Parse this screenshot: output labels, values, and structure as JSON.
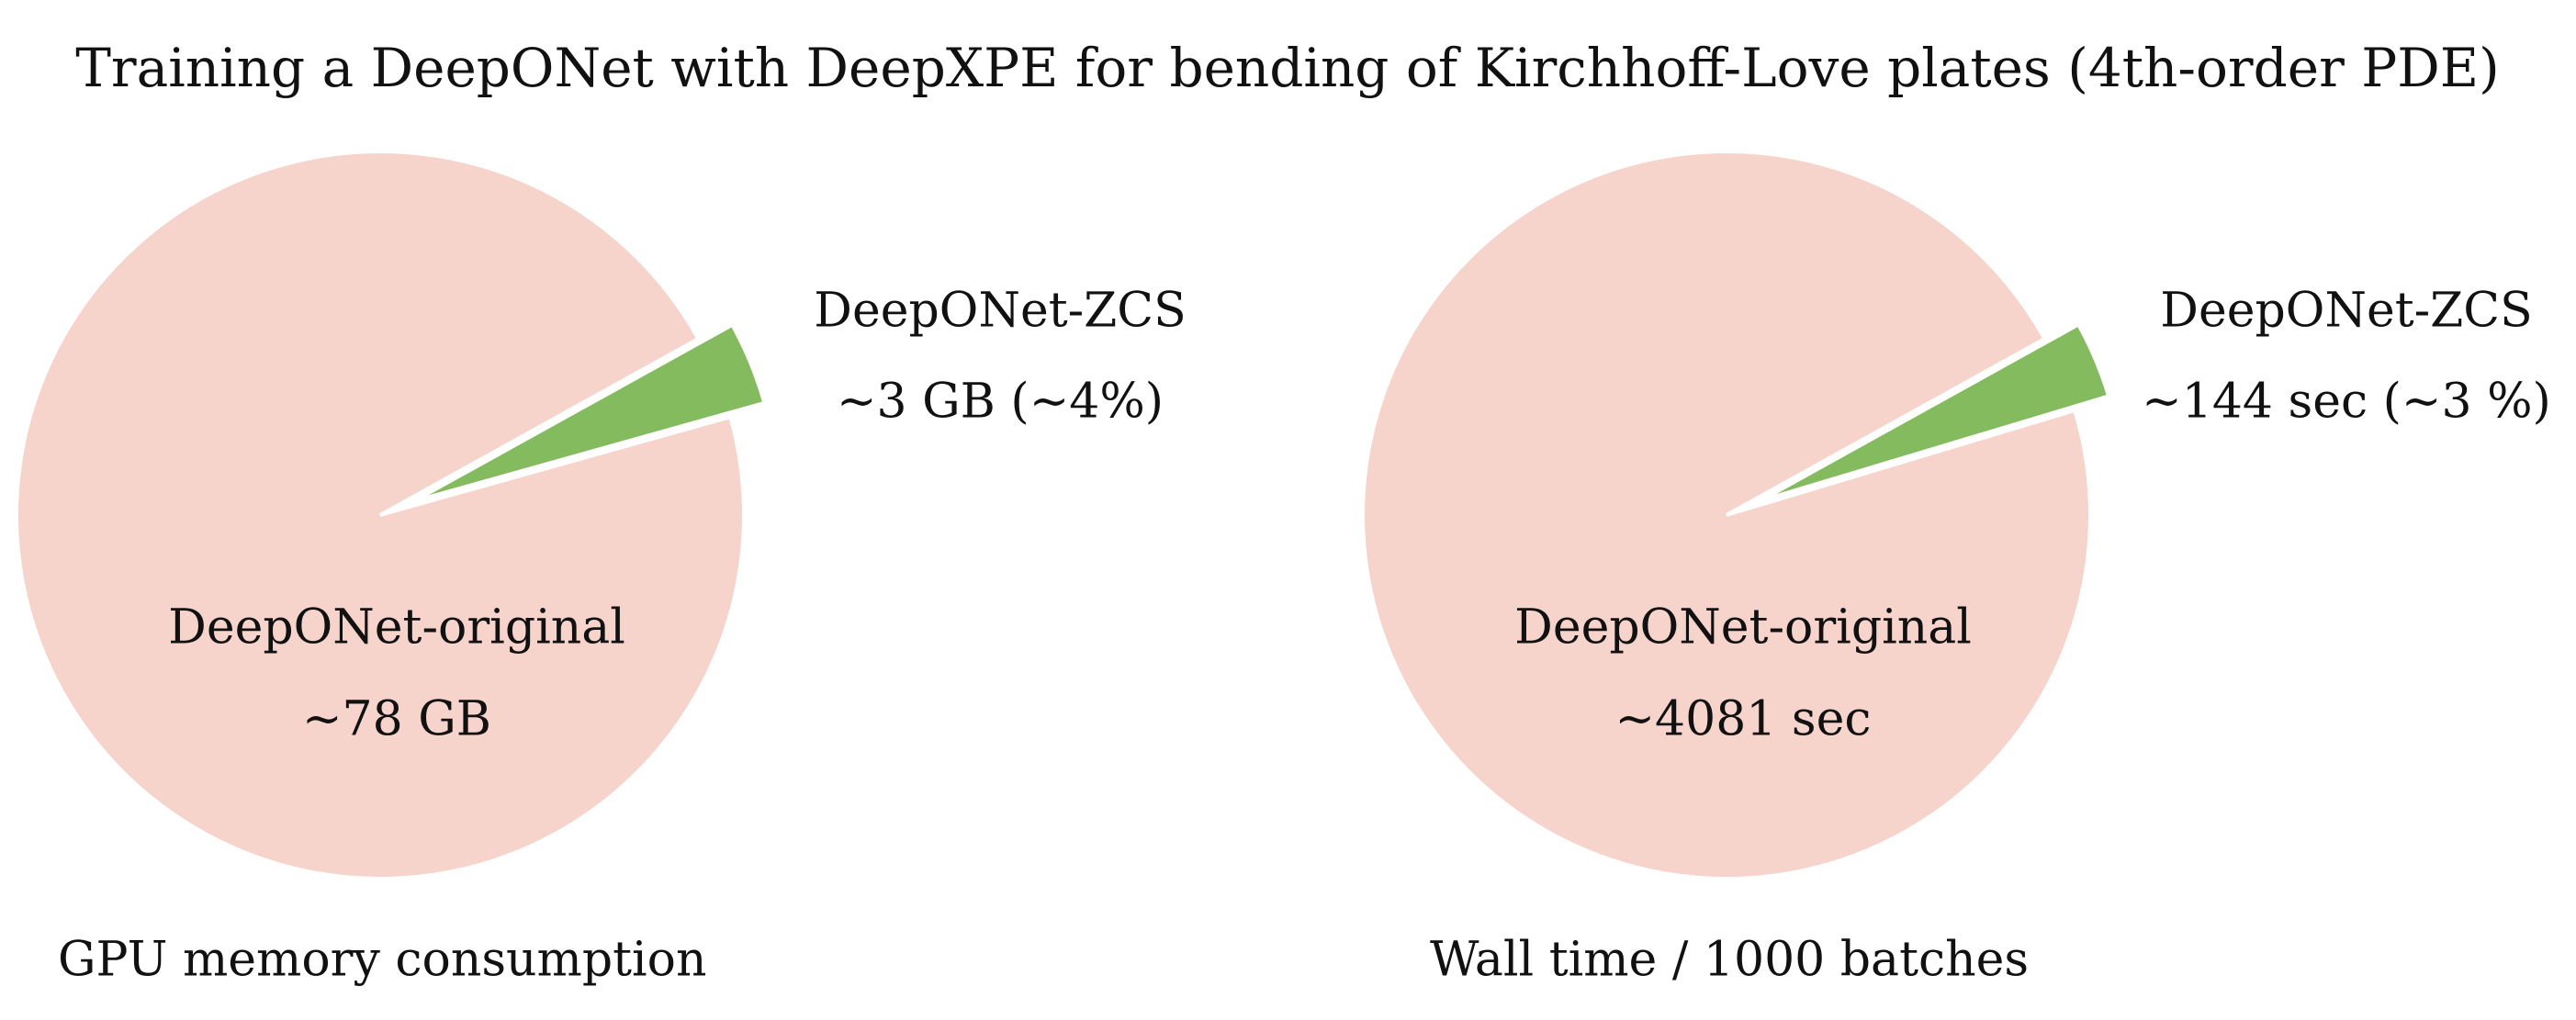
{
  "title": "Training a DeepONet with DeepXPE for bending of Kirchhoff-Love plates (4th-order PDE)",
  "chart_data": [
    {
      "type": "pie",
      "title": "GPU memory consumption",
      "categories": [
        "DeepONet-original",
        "DeepONet-ZCS"
      ],
      "values": [
        78,
        3
      ],
      "value_labels": [
        "~78 GB",
        "~3 GB (~4%)"
      ],
      "colors": [
        "#f6d3cb",
        "#84bb5f"
      ]
    },
    {
      "type": "pie",
      "title": "Wall time / 1000 batches",
      "categories": [
        "DeepONet-original",
        "DeepONet-ZCS"
      ],
      "values": [
        4081,
        144
      ],
      "value_labels": [
        "~4081 sec",
        "~144 sec (~3 %)"
      ],
      "colors": [
        "#f6d3cb",
        "#84bb5f"
      ]
    }
  ]
}
